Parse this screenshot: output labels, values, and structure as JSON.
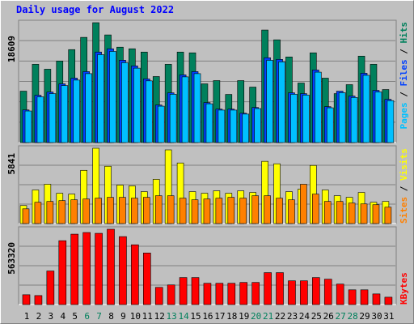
{
  "title": "Daily usage for August 2022",
  "legend_separator": "/",
  "chart_data": [
    {
      "type": "bar",
      "series": [
        {
          "name": "Hits",
          "color": "#00805c",
          "values": [
            7980,
            12150,
            11390,
            12660,
            14430,
            16330,
            18609,
            16710,
            14810,
            14560,
            14050,
            10250,
            12150,
            14050,
            13930,
            9115,
            9620,
            7470,
            9620,
            8610,
            17470,
            15950,
            13290,
            9240,
            13930,
            10000,
            7600,
            8990,
            13420,
            12150,
            8230
          ]
        },
        {
          "name": "Files",
          "color": "#0040ff",
          "values": [
            5064,
            7343,
            7849,
            9115,
            10001,
            11014,
            14053,
            14559,
            12787,
            11900,
            9875,
            5824,
            7723,
            10508,
            11014,
            6203,
            5191,
            5191,
            4558,
            5444,
            13166,
            12913,
            7723,
            7596,
            11267,
            5570,
            7976,
            7216,
            10761,
            8102,
            6710
          ]
        },
        {
          "name": "Pages",
          "color": "#00c0ff",
          "values": [
            4900,
            7100,
            7600,
            8850,
            9700,
            10700,
            13650,
            14150,
            12400,
            11550,
            9580,
            5650,
            7500,
            10200,
            10700,
            6020,
            5040,
            5040,
            4420,
            5280,
            12770,
            12530,
            7500,
            7370,
            10930,
            5400,
            7740,
            7000,
            10440,
            7860,
            6510
          ]
        }
      ],
      "ylim": [
        0,
        18609
      ],
      "yticks": [
        18609
      ]
    },
    {
      "type": "bar",
      "series": [
        {
          "name": "Visits",
          "color": "#ffff00",
          "values": [
            1397,
            2604,
            3048,
            2350,
            2286,
            4128,
            5841,
            4445,
            2985,
            2921,
            2477,
            3429,
            5715,
            4699,
            2477,
            2350,
            2540,
            2350,
            2540,
            2413,
            4826,
            4636,
            2477,
            2667,
            4509,
            2604,
            2159,
            2032,
            2413,
            1651,
            1715
          ]
        },
        {
          "name": "Sites",
          "color": "#ff8000",
          "values": [
            1143,
            1651,
            1715,
            1778,
            1842,
            1905,
            1969,
            2032,
            2032,
            1969,
            2032,
            2159,
            2159,
            1969,
            1842,
            1905,
            1969,
            2032,
            1969,
            2159,
            2159,
            1969,
            1842,
            3048,
            2286,
            1715,
            1715,
            1588,
            1524,
            1461,
            1270
          ]
        }
      ],
      "ylim": [
        0,
        5841
      ],
      "yticks": [
        5841
      ]
    },
    {
      "type": "bar",
      "categories": [
        "1",
        "2",
        "3",
        "4",
        "5",
        "6",
        "7",
        "8",
        "9",
        "10",
        "11",
        "12",
        "13",
        "14",
        "15",
        "16",
        "17",
        "18",
        "19",
        "20",
        "21",
        "22",
        "23",
        "24",
        "25",
        "26",
        "27",
        "28",
        "29",
        "30",
        "31"
      ],
      "category_colors": [
        "#000000",
        "#000000",
        "#000000",
        "#000000",
        "#000000",
        "#00805c",
        "#00805c",
        "#000000",
        "#000000",
        "#000000",
        "#000000",
        "#000000",
        "#00805c",
        "#00805c",
        "#000000",
        "#000000",
        "#000000",
        "#000000",
        "#000000",
        "#00805c",
        "#00805c",
        "#000000",
        "#000000",
        "#000000",
        "#000000",
        "#000000",
        "#00805c",
        "#00805c",
        "#000000",
        "#000000",
        "#000000"
      ],
      "series": [
        {
          "name": "KBytes",
          "color": "#ff0000",
          "values": [
            73480,
            67350,
            251040,
            477590,
            526580,
            538820,
            532700,
            563320,
            508210,
            446980,
            385750,
            128580,
            146950,
            202060,
            202060,
            159200,
            159200,
            159200,
            165320,
            165320,
            238800,
            238800,
            177570,
            177570,
            202060,
            189810,
            153080,
            110210,
            110210,
            79600,
            55110
          ]
        }
      ],
      "ylim": [
        0,
        563320
      ],
      "yticks": [
        563320
      ]
    }
  ]
}
